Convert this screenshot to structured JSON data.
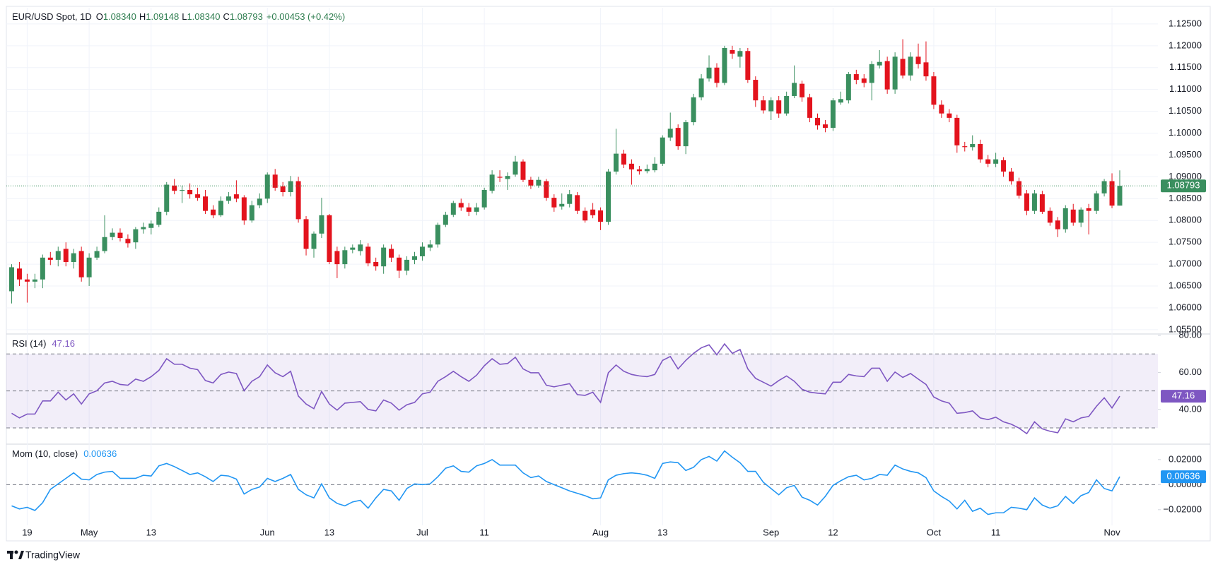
{
  "chart_data": [
    {
      "type": "candlestick",
      "title": "EUR/USD Spot, 1D",
      "header_labels": [
        "O",
        "H",
        "L",
        "C"
      ],
      "header_values": [
        "1.08340",
        "1.09148",
        "1.08340",
        "1.08793"
      ],
      "change": "+0.00453 (+0.42%)",
      "last_label": "1.08793",
      "up_color": "#3a8f5f",
      "down_color": "#e3131d",
      "header_color": "#2e7d4f",
      "categories": [
        null,
        null,
        "19",
        null,
        null,
        null,
        null,
        null,
        null,
        null,
        "May",
        null,
        null,
        null,
        null,
        null,
        null,
        null,
        "13",
        null,
        null,
        null,
        null,
        null,
        null,
        null,
        null,
        null,
        null,
        null,
        null,
        null,
        null,
        "Jun",
        null,
        null,
        null,
        null,
        null,
        null,
        null,
        "13",
        null,
        null,
        null,
        null,
        null,
        null,
        null,
        null,
        null,
        null,
        null,
        "Jul",
        null,
        null,
        null,
        null,
        null,
        null,
        null,
        "11",
        null,
        null,
        null,
        null,
        null,
        null,
        null,
        null,
        null,
        null,
        null,
        null,
        null,
        null,
        "Aug",
        null,
        null,
        null,
        null,
        null,
        null,
        null,
        "13",
        null,
        null,
        null,
        null,
        null,
        null,
        null,
        null,
        null,
        null,
        null,
        null,
        null,
        "Sep",
        null,
        null,
        null,
        null,
        null,
        null,
        null,
        "12",
        null,
        null,
        null,
        null,
        null,
        null,
        null,
        null,
        null,
        null,
        null,
        null,
        "Oct",
        null,
        null,
        null,
        null,
        null,
        null,
        null,
        "11",
        null,
        null,
        null,
        null,
        null,
        null,
        null,
        null,
        null,
        null,
        null,
        null,
        null,
        null,
        "Nov",
        null
      ],
      "open": [
        1.0638,
        1.069,
        1.0665,
        1.066,
        1.0665,
        1.0715,
        1.071,
        1.0735,
        1.0705,
        1.073,
        1.067,
        1.0715,
        1.073,
        1.0762,
        1.0772,
        1.0758,
        1.075,
        1.078,
        1.0783,
        1.079,
        1.082,
        1.088,
        1.0868,
        1.087,
        1.086,
        1.0855,
        1.0825,
        1.0812,
        1.0845,
        1.086,
        1.0853,
        1.08,
        1.0835,
        1.085,
        1.0905,
        1.0878,
        1.0865,
        1.089,
        1.0803,
        1.0735,
        1.077,
        1.0812,
        1.073,
        1.07,
        1.0733,
        1.073,
        1.074,
        1.0705,
        1.0695,
        1.0735,
        1.0715,
        1.0685,
        1.071,
        1.0718,
        1.0738,
        1.0745,
        1.079,
        1.0813,
        1.084,
        1.083,
        1.082,
        1.083,
        1.0868,
        1.09,
        1.0895,
        1.0905,
        1.0935,
        1.0893,
        1.088,
        1.089,
        1.0852,
        1.0832,
        1.0838,
        1.0858,
        1.0822,
        1.0825,
        1.0823,
        1.0797,
        1.0912,
        1.0953,
        1.093,
        1.0917,
        1.0913,
        1.0915,
        1.093,
        1.099,
        1.1012,
        1.097,
        1.1025,
        1.1082,
        1.1125,
        1.115,
        1.1115,
        1.119,
        1.1175,
        1.1188,
        1.1122,
        1.1075,
        1.105,
        1.1075,
        1.1045,
        1.1085,
        1.1113,
        1.1082,
        1.1035,
        1.102,
        1.1012,
        1.107,
        1.1075,
        1.1135,
        1.1125,
        1.1115,
        1.1155,
        1.1165,
        1.11,
        1.117,
        1.1132,
        1.1175,
        1.1162,
        1.113,
        1.1065,
        1.1045,
        1.1035,
        1.097,
        1.0968,
        1.0975,
        1.094,
        1.093,
        1.0938,
        1.0912,
        1.089,
        1.0862,
        1.0822,
        1.086,
        1.0822,
        1.08,
        1.078,
        1.0825,
        1.0795,
        1.0828,
        1.0822,
        1.0862,
        1.089,
        1.0834
      ],
      "high": [
        1.07,
        1.0705,
        1.0678,
        1.0678,
        1.0722,
        1.0728,
        1.074,
        1.075,
        1.0735,
        1.074,
        1.0725,
        1.074,
        1.0812,
        1.0782,
        1.0782,
        1.0768,
        1.0785,
        1.0795,
        1.08,
        1.083,
        1.0888,
        1.0895,
        1.088,
        1.0885,
        1.0875,
        1.087,
        1.0835,
        1.0855,
        1.0865,
        1.0892,
        1.0858,
        1.0845,
        1.0862,
        1.091,
        1.0918,
        1.0888,
        1.0902,
        1.09,
        1.081,
        1.0775,
        1.0852,
        1.0815,
        1.074,
        1.074,
        1.0745,
        1.0755,
        1.0748,
        1.0715,
        1.0745,
        1.0745,
        1.0722,
        1.0718,
        1.0728,
        1.075,
        1.0755,
        1.0795,
        1.082,
        1.0845,
        1.085,
        1.084,
        1.084,
        1.0875,
        1.0915,
        1.0915,
        1.091,
        1.0948,
        1.094,
        1.09,
        1.09,
        1.0895,
        1.086,
        1.0862,
        1.087,
        1.0865,
        1.083,
        1.084,
        1.083,
        1.0918,
        1.101,
        1.0962,
        1.094,
        1.0925,
        1.0928,
        1.0945,
        1.0995,
        1.1047,
        1.102,
        1.103,
        1.109,
        1.1135,
        1.1178,
        1.116,
        1.12,
        1.12,
        1.1195,
        1.1195,
        1.113,
        1.1085,
        1.1082,
        1.1085,
        1.1095,
        1.1155,
        1.112,
        1.109,
        1.1045,
        1.103,
        1.108,
        1.1095,
        1.114,
        1.1145,
        1.1135,
        1.1165,
        1.119,
        1.1175,
        1.1185,
        1.1215,
        1.1185,
        1.1205,
        1.121,
        1.114,
        1.1075,
        1.1055,
        1.1042,
        1.098,
        1.0995,
        1.0985,
        1.095,
        1.0955,
        1.0945,
        1.092,
        1.0898,
        1.087,
        1.087,
        1.0868,
        1.083,
        1.0808,
        1.0835,
        1.0838,
        1.083,
        1.0838,
        1.0868,
        1.0895,
        1.0908,
        1.09148
      ],
      "low": [
        1.061,
        1.065,
        1.0612,
        1.0645,
        1.0645,
        1.0698,
        1.0695,
        1.0695,
        1.069,
        1.066,
        1.065,
        1.071,
        1.0725,
        1.0755,
        1.0752,
        1.0738,
        1.0735,
        1.077,
        1.0768,
        1.0785,
        1.0812,
        1.086,
        1.084,
        1.085,
        1.0845,
        1.0815,
        1.0805,
        1.0808,
        1.0838,
        1.0842,
        1.079,
        1.0795,
        1.0828,
        1.084,
        1.0868,
        1.0855,
        1.0855,
        1.0795,
        1.072,
        1.0715,
        1.076,
        1.07,
        1.0668,
        1.069,
        1.0725,
        1.072,
        1.0695,
        1.0685,
        1.0678,
        1.0705,
        1.0668,
        1.0675,
        1.07,
        1.0708,
        1.073,
        1.0738,
        1.0785,
        1.0808,
        1.0822,
        1.081,
        1.0812,
        1.0825,
        1.0862,
        1.0888,
        1.087,
        1.09,
        1.0888,
        1.0872,
        1.0875,
        1.0845,
        1.082,
        1.0825,
        1.083,
        1.0815,
        1.0795,
        1.0805,
        1.0778,
        1.079,
        1.0905,
        1.092,
        1.0882,
        1.0905,
        1.0908,
        1.091,
        1.0925,
        1.0982,
        1.0962,
        1.0952,
        1.1018,
        1.1075,
        1.1118,
        1.1105,
        1.111,
        1.117,
        1.115,
        1.1115,
        1.106,
        1.1045,
        1.103,
        1.1035,
        1.104,
        1.108,
        1.1072,
        1.1025,
        1.1008,
        1.1002,
        1.1005,
        1.1065,
        1.1068,
        1.1112,
        1.1105,
        1.1075,
        1.1148,
        1.109,
        1.109,
        1.1125,
        1.112,
        1.1148,
        1.112,
        1.1055,
        1.1035,
        1.1025,
        1.0955,
        1.0958,
        1.096,
        1.0932,
        1.0922,
        1.0922,
        1.09,
        1.0882,
        1.085,
        1.0812,
        1.0815,
        1.0815,
        1.0788,
        1.0762,
        1.0772,
        1.0788,
        1.0785,
        1.0768,
        1.0815,
        1.0855,
        1.0828,
        1.0834
      ],
      "close": [
        1.0693,
        1.0665,
        1.066,
        1.0665,
        1.0715,
        1.071,
        1.073,
        1.0705,
        1.0725,
        1.067,
        1.0715,
        1.073,
        1.0762,
        1.0772,
        1.076,
        1.0748,
        1.078,
        1.0785,
        1.0793,
        1.082,
        1.0882,
        1.0868,
        1.087,
        1.086,
        1.0852,
        1.0822,
        1.0812,
        1.0845,
        1.0855,
        1.085,
        1.08,
        1.0835,
        1.085,
        1.0905,
        1.0875,
        1.0865,
        1.089,
        1.0803,
        1.0735,
        1.077,
        1.0812,
        1.0705,
        1.07,
        1.0732,
        1.0738,
        1.0745,
        1.0702,
        1.0695,
        1.0738,
        1.0715,
        1.0685,
        1.071,
        1.0718,
        1.074,
        1.0745,
        1.079,
        1.0813,
        1.084,
        1.083,
        1.082,
        1.083,
        1.087,
        1.0905,
        1.0898,
        1.0902,
        1.0935,
        1.0893,
        1.088,
        1.0893,
        1.0852,
        1.083,
        1.0838,
        1.086,
        1.0822,
        1.08,
        1.0812,
        1.0797,
        1.0912,
        1.0953,
        1.0928,
        1.0917,
        1.0913,
        1.0918,
        1.093,
        1.099,
        1.101,
        1.097,
        1.1025,
        1.1082,
        1.1125,
        1.115,
        1.1115,
        1.1195,
        1.1182,
        1.1188,
        1.1122,
        1.1075,
        1.1052,
        1.1075,
        1.1045,
        1.1085,
        1.1115,
        1.1082,
        1.1035,
        1.1018,
        1.1012,
        1.1075,
        1.1078,
        1.1135,
        1.1122,
        1.1115,
        1.1158,
        1.1163,
        1.11,
        1.1175,
        1.1132,
        1.1175,
        1.1158,
        1.113,
        1.1065,
        1.1045,
        1.1035,
        1.0972,
        1.0968,
        1.0975,
        1.094,
        1.093,
        1.094,
        1.0912,
        1.089,
        1.0857,
        1.0822,
        1.0862,
        1.082,
        1.0795,
        1.078,
        1.0828,
        1.0795,
        1.0825,
        1.0822,
        1.0862,
        1.089,
        1.0834,
        1.08793
      ],
      "ylim": [
        1.0545,
        1.1287
      ],
      "yticks": [
        {
          "value": 1.055,
          "label": "1.05500"
        },
        {
          "value": 1.06,
          "label": "1.06000"
        },
        {
          "value": 1.065,
          "label": "1.06500"
        },
        {
          "value": 1.07,
          "label": "1.07000"
        },
        {
          "value": 1.075,
          "label": "1.07500"
        },
        {
          "value": 1.08,
          "label": "1.08000"
        },
        {
          "value": 1.085,
          "label": "1.08500"
        },
        {
          "value": 1.09,
          "label": "1.09000"
        },
        {
          "value": 1.095,
          "label": "1.09500"
        },
        {
          "value": 1.1,
          "label": "1.10000"
        },
        {
          "value": 1.105,
          "label": "1.10500"
        },
        {
          "value": 1.11,
          "label": "1.11000"
        },
        {
          "value": 1.115,
          "label": "1.11500"
        },
        {
          "value": 1.12,
          "label": "1.12000"
        },
        {
          "value": 1.125,
          "label": "1.12500"
        }
      ],
      "grid": true
    },
    {
      "type": "line",
      "title": "RSI (14)",
      "color": "#7e57c2",
      "values": [
        37.9,
        35.4,
        37.5,
        37.5,
        44.6,
        44.6,
        49.3,
        45.1,
        48.4,
        42.9,
        48.4,
        50.1,
        54.3,
        55.2,
        53.5,
        53.1,
        56.4,
        55.2,
        57.7,
        61.1,
        67.4,
        64.4,
        64.4,
        62.3,
        61.5,
        55.6,
        54.3,
        58.9,
        60.2,
        59.4,
        50.1,
        55.2,
        57.7,
        64.0,
        59.8,
        57.7,
        60.6,
        47.2,
        42.9,
        40.4,
        49.7,
        42.9,
        39.6,
        43.4,
        43.8,
        44.2,
        40.0,
        39.2,
        45.1,
        43.4,
        39.6,
        42.5,
        43.8,
        48.4,
        49.3,
        55.2,
        57.7,
        60.6,
        57.7,
        55.2,
        58.5,
        63.6,
        67.4,
        64.4,
        64.8,
        68.2,
        61.9,
        59.8,
        59.8,
        53.1,
        52.2,
        53.1,
        53.9,
        48.0,
        47.6,
        49.3,
        43.8,
        59.8,
        64.0,
        60.6,
        58.9,
        58.1,
        57.7,
        58.9,
        66.5,
        68.6,
        61.9,
        66.5,
        70.3,
        73.3,
        74.9,
        69.5,
        75.4,
        70.3,
        72.4,
        61.9,
        56.8,
        54.7,
        52.6,
        55.6,
        58.1,
        55.2,
        50.9,
        49.3,
        48.8,
        48.4,
        54.7,
        54.7,
        58.9,
        58.1,
        57.7,
        62.3,
        62.3,
        55.2,
        60.2,
        57.3,
        59.4,
        56.4,
        53.5,
        46.7,
        44.6,
        43.4,
        37.9,
        38.3,
        39.2,
        35.4,
        34.5,
        35.8,
        33.3,
        32.0,
        29.9,
        26.9,
        33.3,
        29.5,
        28.2,
        27.4,
        34.9,
        33.3,
        35.4,
        36.2,
        41.7,
        46.3,
        40.8,
        47.16
      ],
      "levels": [
        70,
        50,
        30
      ],
      "ylim": [
        22,
        80
      ],
      "yticks": [
        {
          "value": 40,
          "label": "40.00"
        },
        {
          "value": 60,
          "label": "60.00"
        },
        {
          "value": 80,
          "label": "80.00"
        }
      ]
    },
    {
      "type": "line",
      "title": "Mom (10, close)",
      "color": "#2196f3",
      "values": [
        -0.0169,
        -0.0194,
        -0.0181,
        -0.0206,
        -0.0144,
        -0.0038,
        0.0006,
        0.005,
        0.0094,
        0.0044,
        0.0038,
        0.0081,
        0.01,
        0.0106,
        0.005,
        0.005,
        0.005,
        0.0075,
        0.0069,
        0.015,
        0.0169,
        0.0144,
        0.0113,
        0.0081,
        0.0094,
        0.0063,
        0.0025,
        0.0075,
        0.0069,
        0.0044,
        -0.0075,
        -0.0038,
        -0.0019,
        0.005,
        0.0025,
        0.005,
        0.0081,
        -0.0038,
        -0.0081,
        -0.0106,
        0.0006,
        -0.0106,
        -0.015,
        -0.0169,
        -0.0138,
        -0.0125,
        -0.0188,
        -0.0106,
        -0.0038,
        -0.005,
        -0.0125,
        -0.0031,
        0.0006,
        0,
        0.0006,
        0.0063,
        0.0131,
        0.015,
        0.0106,
        0.01,
        0.015,
        0.0169,
        0.02,
        0.0156,
        0.0156,
        0.0156,
        0.0094,
        0.0056,
        0.0069,
        0.0025,
        0,
        -0.0025,
        -0.005,
        -0.0069,
        -0.0088,
        -0.0113,
        -0.0106,
        0.0038,
        0.0075,
        0.0088,
        0.0094,
        0.0088,
        0.0075,
        0.005,
        0.0169,
        0.0181,
        0.0175,
        0.0113,
        0.0138,
        0.02,
        0.0225,
        0.0188,
        0.0269,
        0.0219,
        0.0175,
        0.0106,
        0.0106,
        0.0019,
        -0.0031,
        -0.0081,
        -0.0025,
        -0.0006,
        -0.01,
        -0.0125,
        -0.0163,
        -0.0094,
        -0.0006,
        0.0031,
        0.0063,
        0.0075,
        0.0038,
        0.005,
        0.0081,
        0.0075,
        0.0156,
        0.0125,
        0.0106,
        0.0094,
        0.0056,
        -0.005,
        -0.0094,
        -0.0131,
        -0.0194,
        -0.0125,
        -0.0213,
        -0.0188,
        -0.0238,
        -0.0225,
        -0.0225,
        -0.0181,
        -0.0188,
        -0.02,
        -0.0106,
        -0.0163,
        -0.0188,
        -0.0169,
        -0.0094,
        -0.015,
        -0.0088,
        -0.0063,
        0.0038,
        -0.0031,
        -0.005,
        0.00636
      ],
      "levels": [
        0
      ],
      "ylim": [
        -0.0325,
        0.0312
      ],
      "yticks": [
        {
          "value": -0.02,
          "label": "−0.02000"
        },
        {
          "value": 0,
          "label": "0.00000"
        },
        {
          "value": 0.02,
          "label": "0.02000"
        }
      ]
    }
  ],
  "footer": "TradingView"
}
